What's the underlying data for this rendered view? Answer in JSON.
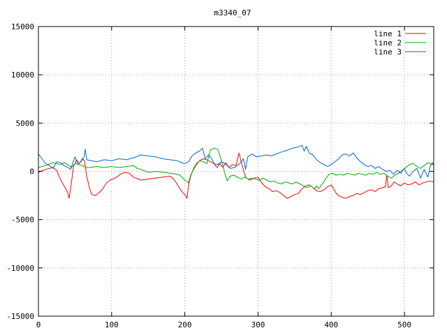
{
  "chart_data": {
    "type": "line",
    "title": "m3340_07",
    "xlabel": "",
    "ylabel": "",
    "xlim": [
      0,
      540
    ],
    "ylim": [
      -15000,
      15000
    ],
    "xticks": [
      0,
      100,
      200,
      300,
      400,
      500
    ],
    "yticks": [
      -15000,
      -10000,
      -5000,
      0,
      5000,
      10000,
      15000
    ],
    "grid": true,
    "legend_position": "top-right",
    "series": [
      {
        "name": "line 1",
        "color": "#ff0000",
        "points": [
          [
            0,
            -100
          ],
          [
            10,
            200
          ],
          [
            20,
            400
          ],
          [
            25,
            100
          ],
          [
            30,
            -800
          ],
          [
            35,
            -1500
          ],
          [
            40,
            -2200
          ],
          [
            42,
            -2800
          ],
          [
            45,
            -1200
          ],
          [
            48,
            500
          ],
          [
            52,
            1200
          ],
          [
            56,
            800
          ],
          [
            60,
            1300
          ],
          [
            63,
            1100
          ],
          [
            66,
            -500
          ],
          [
            70,
            -1800
          ],
          [
            73,
            -2400
          ],
          [
            78,
            -2500
          ],
          [
            83,
            -2200
          ],
          [
            88,
            -1800
          ],
          [
            93,
            -1200
          ],
          [
            98,
            -900
          ],
          [
            105,
            -700
          ],
          [
            112,
            -300
          ],
          [
            118,
            -100
          ],
          [
            124,
            -200
          ],
          [
            130,
            -600
          ],
          [
            140,
            -900
          ],
          [
            150,
            -800
          ],
          [
            160,
            -700
          ],
          [
            170,
            -600
          ],
          [
            180,
            -500
          ],
          [
            186,
            -900
          ],
          [
            190,
            -1400
          ],
          [
            195,
            -2000
          ],
          [
            200,
            -2400
          ],
          [
            203,
            -2800
          ],
          [
            205,
            -1500
          ],
          [
            208,
            -500
          ],
          [
            212,
            300
          ],
          [
            216,
            800
          ],
          [
            220,
            1100
          ],
          [
            225,
            1300
          ],
          [
            230,
            1200
          ],
          [
            235,
            1000
          ],
          [
            240,
            800
          ],
          [
            244,
            400
          ],
          [
            248,
            800
          ],
          [
            252,
            400
          ],
          [
            256,
            900
          ],
          [
            260,
            400
          ],
          [
            265,
            700
          ],
          [
            270,
            600
          ],
          [
            274,
            1900
          ],
          [
            278,
            700
          ],
          [
            283,
            -600
          ],
          [
            288,
            -900
          ],
          [
            295,
            -700
          ],
          [
            300,
            -600
          ],
          [
            305,
            -1200
          ],
          [
            310,
            -1600
          ],
          [
            315,
            -1800
          ],
          [
            320,
            -2100
          ],
          [
            325,
            -2000
          ],
          [
            330,
            -2200
          ],
          [
            335,
            -2500
          ],
          [
            340,
            -2800
          ],
          [
            345,
            -2600
          ],
          [
            350,
            -2400
          ],
          [
            355,
            -2300
          ],
          [
            360,
            -1800
          ],
          [
            365,
            -1500
          ],
          [
            370,
            -1400
          ],
          [
            375,
            -1700
          ],
          [
            380,
            -2000
          ],
          [
            385,
            -2100
          ],
          [
            390,
            -1900
          ],
          [
            395,
            -1600
          ],
          [
            400,
            -1400
          ],
          [
            403,
            -1800
          ],
          [
            406,
            -2200
          ],
          [
            410,
            -2500
          ],
          [
            415,
            -2700
          ],
          [
            420,
            -2800
          ],
          [
            425,
            -2600
          ],
          [
            430,
            -2500
          ],
          [
            435,
            -2300
          ],
          [
            440,
            -2400
          ],
          [
            445,
            -2200
          ],
          [
            450,
            -2000
          ],
          [
            455,
            -1900
          ],
          [
            460,
            -2100
          ],
          [
            465,
            -1800
          ],
          [
            470,
            -1700
          ],
          [
            474,
            -1600
          ],
          [
            476,
            -400
          ],
          [
            478,
            -1700
          ],
          [
            482,
            -1500
          ],
          [
            486,
            -1100
          ],
          [
            490,
            -1300
          ],
          [
            495,
            -1500
          ],
          [
            500,
            -1200
          ],
          [
            505,
            -1400
          ],
          [
            510,
            -1300
          ],
          [
            515,
            -1100
          ],
          [
            520,
            -1400
          ],
          [
            525,
            -1200
          ],
          [
            530,
            -1100
          ],
          [
            535,
            -1000
          ],
          [
            540,
            -1100
          ]
        ]
      },
      {
        "name": "line 2",
        "color": "#00aa00",
        "points": [
          [
            0,
            400
          ],
          [
            10,
            600
          ],
          [
            20,
            900
          ],
          [
            30,
            700
          ],
          [
            35,
            900
          ],
          [
            40,
            700
          ],
          [
            45,
            400
          ],
          [
            50,
            800
          ],
          [
            55,
            700
          ],
          [
            60,
            600
          ],
          [
            65,
            400
          ],
          [
            70,
            400
          ],
          [
            80,
            500
          ],
          [
            90,
            400
          ],
          [
            100,
            500
          ],
          [
            110,
            400
          ],
          [
            120,
            500
          ],
          [
            130,
            600
          ],
          [
            135,
            300
          ],
          [
            140,
            200
          ],
          [
            150,
            -100
          ],
          [
            160,
            0
          ],
          [
            170,
            -100
          ],
          [
            180,
            -200
          ],
          [
            190,
            -300
          ],
          [
            195,
            -500
          ],
          [
            200,
            -900
          ],
          [
            205,
            -1200
          ],
          [
            208,
            -400
          ],
          [
            212,
            200
          ],
          [
            216,
            700
          ],
          [
            220,
            1100
          ],
          [
            225,
            1000
          ],
          [
            230,
            800
          ],
          [
            235,
            2200
          ],
          [
            240,
            2400
          ],
          [
            245,
            2300
          ],
          [
            248,
            1600
          ],
          [
            252,
            600
          ],
          [
            255,
            -300
          ],
          [
            258,
            -1000
          ],
          [
            262,
            -500
          ],
          [
            267,
            -400
          ],
          [
            272,
            -600
          ],
          [
            277,
            -800
          ],
          [
            282,
            -600
          ],
          [
            287,
            -800
          ],
          [
            292,
            -700
          ],
          [
            297,
            -800
          ],
          [
            302,
            -900
          ],
          [
            307,
            -700
          ],
          [
            312,
            -900
          ],
          [
            317,
            -1100
          ],
          [
            322,
            -1000
          ],
          [
            327,
            -1200
          ],
          [
            332,
            -1300
          ],
          [
            337,
            -1100
          ],
          [
            342,
            -1200
          ],
          [
            347,
            -1300
          ],
          [
            352,
            -1100
          ],
          [
            357,
            -1300
          ],
          [
            362,
            -1500
          ],
          [
            367,
            -1700
          ],
          [
            372,
            -1500
          ],
          [
            377,
            -1800
          ],
          [
            380,
            -1500
          ],
          [
            383,
            -1800
          ],
          [
            387,
            -1400
          ],
          [
            392,
            -800
          ],
          [
            397,
            -300
          ],
          [
            402,
            -200
          ],
          [
            407,
            -400
          ],
          [
            412,
            -300
          ],
          [
            417,
            -400
          ],
          [
            422,
            -200
          ],
          [
            427,
            -300
          ],
          [
            432,
            -400
          ],
          [
            437,
            -200
          ],
          [
            442,
            -300
          ],
          [
            447,
            -400
          ],
          [
            452,
            -200
          ],
          [
            457,
            -300
          ],
          [
            462,
            -100
          ],
          [
            467,
            -300
          ],
          [
            472,
            -200
          ],
          [
            477,
            -500
          ],
          [
            482,
            -700
          ],
          [
            487,
            -400
          ],
          [
            492,
            -200
          ],
          [
            497,
            100
          ],
          [
            502,
            400
          ],
          [
            507,
            700
          ],
          [
            512,
            800
          ],
          [
            517,
            500
          ],
          [
            522,
            300
          ],
          [
            527,
            600
          ],
          [
            532,
            900
          ],
          [
            537,
            700
          ],
          [
            540,
            800
          ]
        ]
      },
      {
        "name": "line 3",
        "color": "#0066cc",
        "points": [
          [
            0,
            1800
          ],
          [
            5,
            1300
          ],
          [
            10,
            800
          ],
          [
            15,
            600
          ],
          [
            20,
            300
          ],
          [
            25,
            1000
          ],
          [
            30,
            900
          ],
          [
            35,
            600
          ],
          [
            40,
            400
          ],
          [
            44,
            200
          ],
          [
            47,
            900
          ],
          [
            50,
            1500
          ],
          [
            54,
            700
          ],
          [
            58,
            1000
          ],
          [
            62,
            1400
          ],
          [
            64,
            2300
          ],
          [
            66,
            1200
          ],
          [
            72,
            1100
          ],
          [
            80,
            1000
          ],
          [
            90,
            1200
          ],
          [
            100,
            1100
          ],
          [
            110,
            1300
          ],
          [
            120,
            1200
          ],
          [
            130,
            1400
          ],
          [
            140,
            1700
          ],
          [
            150,
            1600
          ],
          [
            160,
            1500
          ],
          [
            170,
            1300
          ],
          [
            180,
            1200
          ],
          [
            190,
            1100
          ],
          [
            195,
            900
          ],
          [
            200,
            800
          ],
          [
            205,
            1000
          ],
          [
            210,
            1600
          ],
          [
            215,
            1900
          ],
          [
            220,
            2100
          ],
          [
            224,
            2400
          ],
          [
            228,
            1300
          ],
          [
            232,
            1700
          ],
          [
            236,
            1400
          ],
          [
            240,
            800
          ],
          [
            245,
            700
          ],
          [
            250,
            1000
          ],
          [
            255,
            800
          ],
          [
            262,
            300
          ],
          [
            268,
            400
          ],
          [
            275,
            800
          ],
          [
            280,
            1300
          ],
          [
            283,
            200
          ],
          [
            286,
            1500
          ],
          [
            292,
            1800
          ],
          [
            298,
            1500
          ],
          [
            305,
            1600
          ],
          [
            312,
            1700
          ],
          [
            318,
            1600
          ],
          [
            325,
            1800
          ],
          [
            332,
            2000
          ],
          [
            340,
            2200
          ],
          [
            347,
            2400
          ],
          [
            354,
            2500
          ],
          [
            360,
            2700
          ],
          [
            363,
            2100
          ],
          [
            366,
            2600
          ],
          [
            370,
            1900
          ],
          [
            375,
            1700
          ],
          [
            380,
            1200
          ],
          [
            385,
            900
          ],
          [
            390,
            700
          ],
          [
            395,
            500
          ],
          [
            400,
            700
          ],
          [
            405,
            1000
          ],
          [
            410,
            1300
          ],
          [
            415,
            1700
          ],
          [
            420,
            1800
          ],
          [
            425,
            1600
          ],
          [
            430,
            1900
          ],
          [
            435,
            1400
          ],
          [
            440,
            1000
          ],
          [
            445,
            700
          ],
          [
            450,
            500
          ],
          [
            455,
            600
          ],
          [
            460,
            300
          ],
          [
            465,
            500
          ],
          [
            470,
            200
          ],
          [
            475,
            0
          ],
          [
            480,
            100
          ],
          [
            485,
            -300
          ],
          [
            490,
            100
          ],
          [
            495,
            -200
          ],
          [
            500,
            300
          ],
          [
            503,
            -200
          ],
          [
            507,
            -500
          ],
          [
            512,
            0
          ],
          [
            517,
            300
          ],
          [
            522,
            -700
          ],
          [
            527,
            200
          ],
          [
            532,
            -600
          ],
          [
            535,
            500
          ],
          [
            538,
            900
          ],
          [
            540,
            600
          ]
        ]
      }
    ]
  }
}
